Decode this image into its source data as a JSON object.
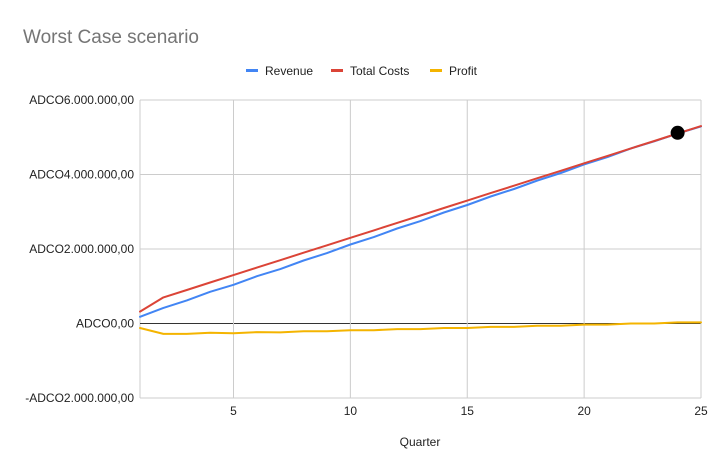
{
  "chart_data": {
    "type": "line",
    "title": "Worst Case scenario",
    "xlabel": "Quarter",
    "ylabel": "",
    "x": [
      1,
      2,
      3,
      4,
      5,
      6,
      7,
      8,
      9,
      10,
      11,
      12,
      13,
      14,
      15,
      16,
      17,
      18,
      19,
      20,
      21,
      22,
      23,
      24,
      25
    ],
    "xlim": [
      1,
      25
    ],
    "ylim": [
      -2000000,
      6000000
    ],
    "x_ticks": [
      5,
      10,
      15,
      20,
      25
    ],
    "y_ticks": [
      {
        "value": -2000000,
        "label": "-ADCO2.000.000,00"
      },
      {
        "value": 0,
        "label": "ADCO0,00"
      },
      {
        "value": 2000000,
        "label": "ADCO2.000.000,00"
      },
      {
        "value": 4000000,
        "label": "ADCO4.000.000,00"
      },
      {
        "value": 6000000,
        "label": "ADCO6.000.000,00"
      }
    ],
    "grid": true,
    "legend_position": "top",
    "series": [
      {
        "name": "Revenue",
        "color": "#4285f4",
        "values": [
          180000,
          420000,
          620000,
          850000,
          1040000,
          1270000,
          1460000,
          1690000,
          1890000,
          2120000,
          2320000,
          2550000,
          2750000,
          2980000,
          3180000,
          3410000,
          3610000,
          3840000,
          4040000,
          4270000,
          4470000,
          4700000,
          4890000,
          5100000,
          5290000
        ]
      },
      {
        "name": "Total Costs",
        "color": "#db4437",
        "values": [
          320000,
          700000,
          900000,
          1100000,
          1300000,
          1500000,
          1700000,
          1900000,
          2100000,
          2300000,
          2500000,
          2700000,
          2900000,
          3100000,
          3300000,
          3500000,
          3700000,
          3900000,
          4100000,
          4300000,
          4500000,
          4700000,
          4900000,
          5100000,
          5300000
        ]
      },
      {
        "name": "Profit",
        "color": "#f4b400",
        "values": [
          -120000,
          -280000,
          -280000,
          -250000,
          -260000,
          -230000,
          -240000,
          -210000,
          -210000,
          -180000,
          -180000,
          -150000,
          -150000,
          -120000,
          -120000,
          -90000,
          -90000,
          -60000,
          -60000,
          -30000,
          -30000,
          0,
          0,
          30000,
          30000
        ]
      }
    ],
    "highlight_point": {
      "x": 24,
      "y": 5120000,
      "color": "#000000"
    }
  }
}
